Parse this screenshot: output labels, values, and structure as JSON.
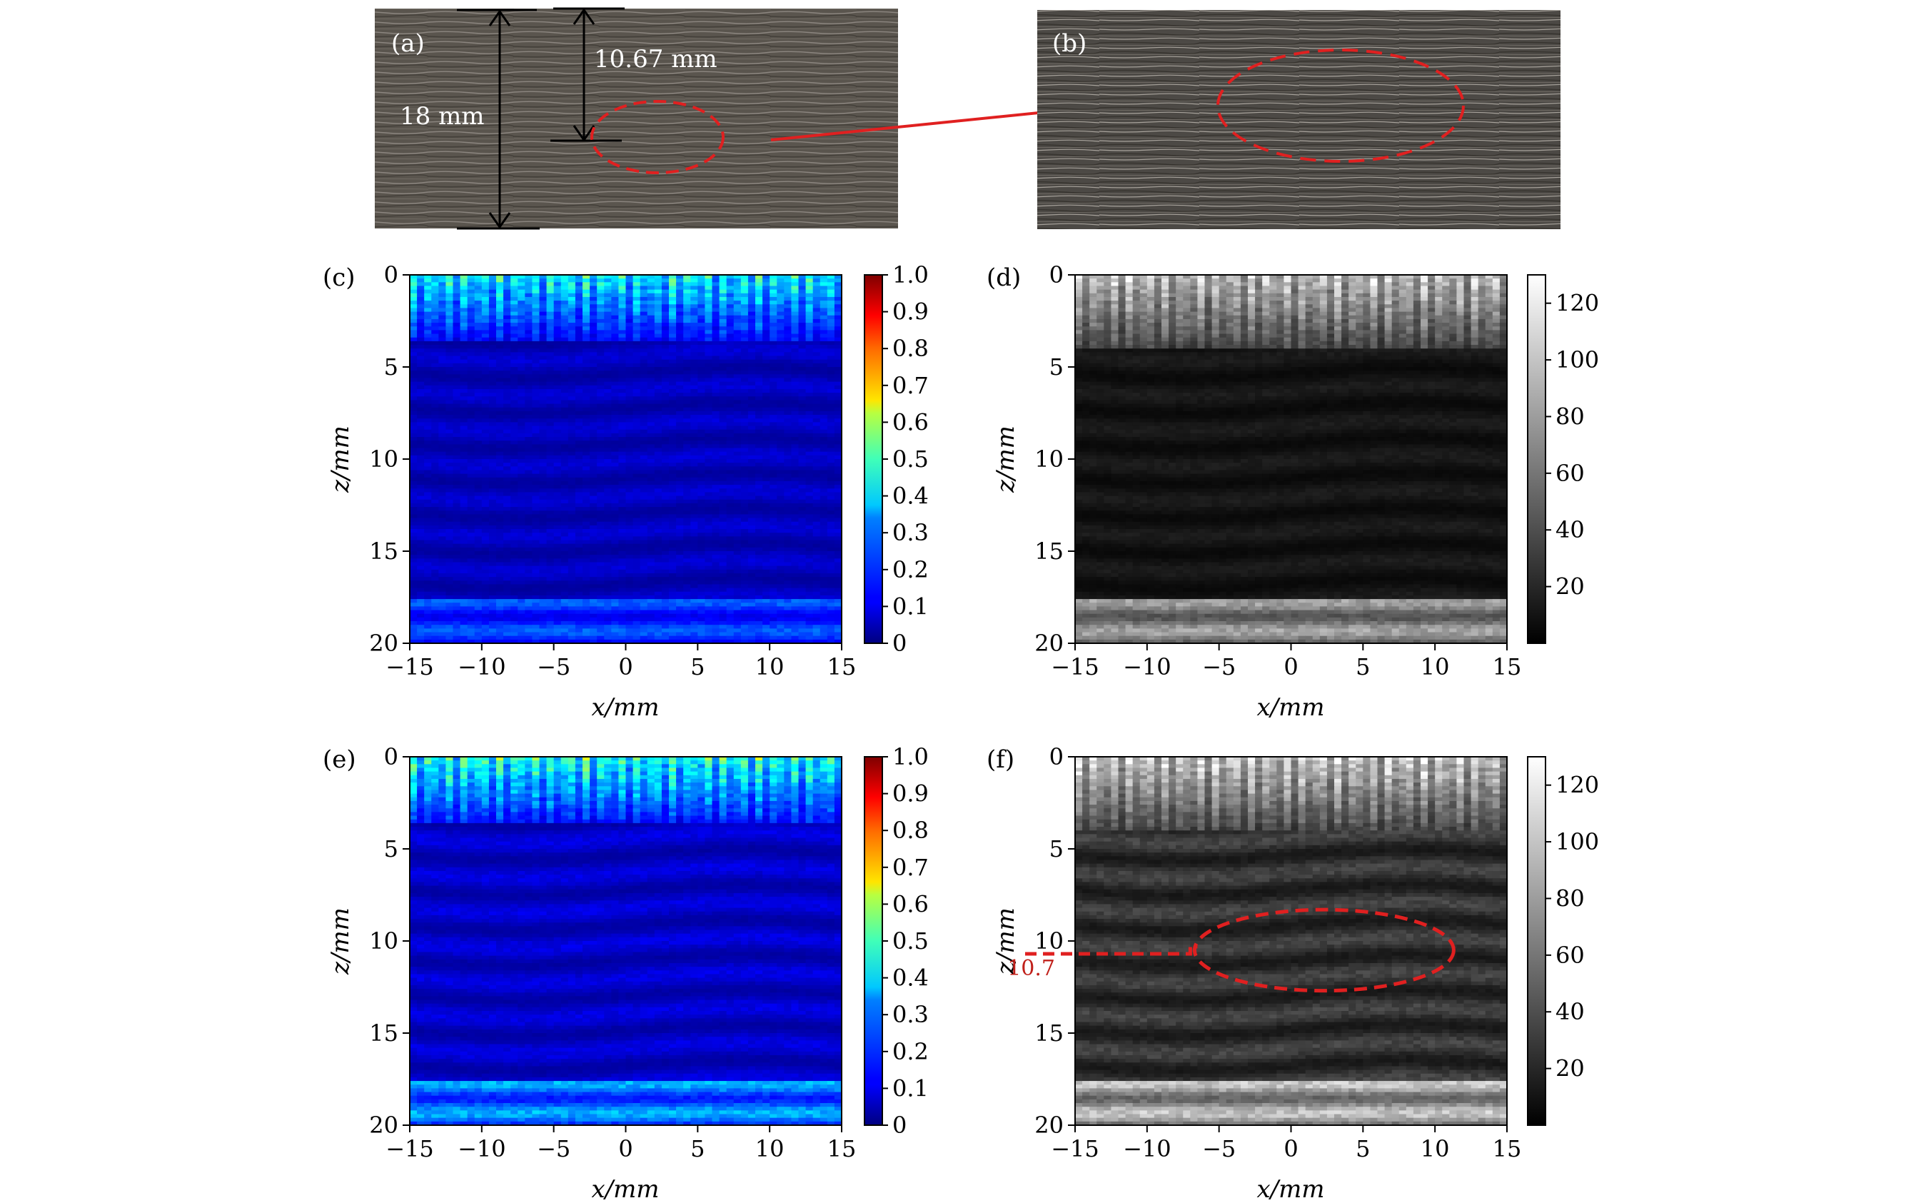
{
  "photos": {
    "a": {
      "panel_label": "(a)",
      "thickness_label": "18 mm",
      "depth_label": "10.67 mm",
      "thickness_mm": 18,
      "defect_depth_mm": 10.67
    },
    "b": {
      "panel_label": "(b)"
    }
  },
  "chart_data": [
    {
      "id": "c",
      "type": "heatmap",
      "panel_label": "(c)",
      "xlabel": "x/mm",
      "ylabel": "z/mm",
      "xlim": [
        -15,
        15
      ],
      "ylim": [
        20,
        0
      ],
      "xticks": [
        "−15",
        "−10",
        "−5",
        "0",
        "5",
        "10",
        "15"
      ],
      "xtick_values": [
        -15,
        -10,
        -5,
        0,
        5,
        10,
        15
      ],
      "yticks": [
        "0",
        "5",
        "10",
        "15",
        "20"
      ],
      "ytick_values": [
        0,
        5,
        10,
        15,
        20
      ],
      "colormap": "jet",
      "colorbar": {
        "range": [
          0,
          1.0
        ],
        "ticks": [
          "0",
          "0.1",
          "0.2",
          "0.3",
          "0.4",
          "0.5",
          "0.6",
          "0.7",
          "0.8",
          "0.9",
          "1.0"
        ],
        "tick_values": [
          0,
          0.1,
          0.2,
          0.3,
          0.4,
          0.5,
          0.6,
          0.7,
          0.8,
          0.9,
          1.0
        ]
      },
      "features": [
        {
          "kind": "surface_echoes",
          "z_range": [
            0,
            3.5
          ],
          "peak": 0.45
        },
        {
          "kind": "background",
          "z_range": [
            3.5,
            17.5
          ],
          "level": 0.06
        },
        {
          "kind": "back_wall",
          "z_range": [
            17.5,
            20
          ],
          "level": 0.18
        }
      ]
    },
    {
      "id": "d",
      "type": "heatmap",
      "panel_label": "(d)",
      "xlabel": "x/mm",
      "ylabel": "z/mm",
      "xlim": [
        -15,
        15
      ],
      "ylim": [
        20,
        0
      ],
      "xticks": [
        "−15",
        "−10",
        "−5",
        "0",
        "5",
        "10",
        "15"
      ],
      "xtick_values": [
        -15,
        -10,
        -5,
        0,
        5,
        10,
        15
      ],
      "yticks": [
        "0",
        "5",
        "10",
        "15",
        "20"
      ],
      "ytick_values": [
        0,
        5,
        10,
        15,
        20
      ],
      "colormap": "gray",
      "colorbar": {
        "range": [
          0,
          130
        ],
        "ticks": [
          "20",
          "40",
          "60",
          "80",
          "100",
          "120"
        ],
        "tick_values": [
          20,
          40,
          60,
          80,
          100,
          120
        ]
      },
      "features": [
        {
          "kind": "surface_echoes",
          "z_range": [
            0,
            4
          ],
          "peak": 120
        },
        {
          "kind": "background",
          "z_range": [
            4,
            17.5
          ],
          "level": 10
        },
        {
          "kind": "back_wall",
          "z_range": [
            17.5,
            20
          ],
          "level": 70
        }
      ]
    },
    {
      "id": "e",
      "type": "heatmap",
      "panel_label": "(e)",
      "xlabel": "x/mm",
      "ylabel": "z/mm",
      "xlim": [
        -15,
        15
      ],
      "ylim": [
        20,
        0
      ],
      "xticks": [
        "−15",
        "−10",
        "−5",
        "0",
        "5",
        "10",
        "15"
      ],
      "xtick_values": [
        -15,
        -10,
        -5,
        0,
        5,
        10,
        15
      ],
      "yticks": [
        "0",
        "5",
        "10",
        "15",
        "20"
      ],
      "ytick_values": [
        0,
        5,
        10,
        15,
        20
      ],
      "colormap": "jet",
      "colorbar": {
        "range": [
          0,
          1.0
        ],
        "ticks": [
          "0",
          "0.1",
          "0.2",
          "0.3",
          "0.4",
          "0.5",
          "0.6",
          "0.7",
          "0.8",
          "0.9",
          "1.0"
        ],
        "tick_values": [
          0,
          0.1,
          0.2,
          0.3,
          0.4,
          0.5,
          0.6,
          0.7,
          0.8,
          0.9,
          1.0
        ]
      },
      "features": [
        {
          "kind": "surface_echoes",
          "z_range": [
            0,
            3.5
          ],
          "peak": 0.5
        },
        {
          "kind": "background",
          "z_range": [
            3.5,
            17.5
          ],
          "level": 0.07
        },
        {
          "kind": "back_wall",
          "z_range": [
            17.5,
            20
          ],
          "level": 0.25
        }
      ]
    },
    {
      "id": "f",
      "type": "heatmap",
      "panel_label": "(f)",
      "xlabel": "x/mm",
      "ylabel": "z/mm",
      "xlim": [
        -15,
        15
      ],
      "ylim": [
        20,
        0
      ],
      "xticks": [
        "−15",
        "−10",
        "−5",
        "0",
        "5",
        "10",
        "15"
      ],
      "xtick_values": [
        -15,
        -10,
        -5,
        0,
        5,
        10,
        15
      ],
      "yticks": [
        "0",
        "5",
        "10",
        "15",
        "20"
      ],
      "ytick_values": [
        0,
        5,
        10,
        15,
        20
      ],
      "colormap": "gray",
      "colorbar": {
        "range": [
          0,
          130
        ],
        "ticks": [
          "20",
          "40",
          "60",
          "80",
          "100",
          "120"
        ],
        "tick_values": [
          20,
          40,
          60,
          80,
          100,
          120
        ]
      },
      "features": [
        {
          "kind": "surface_echoes",
          "z_range": [
            0,
            4
          ],
          "peak": 125
        },
        {
          "kind": "background",
          "z_range": [
            4,
            17.5
          ],
          "level": 25
        },
        {
          "kind": "back_wall",
          "z_range": [
            17.5,
            20
          ],
          "level": 85
        }
      ],
      "annotation": {
        "text": "10.7",
        "z": 10.7,
        "defect_ellipse": {
          "x_center": 2.3,
          "z_center": 10.5,
          "x_radius": 9.0,
          "z_radius": 2.2
        }
      }
    }
  ]
}
